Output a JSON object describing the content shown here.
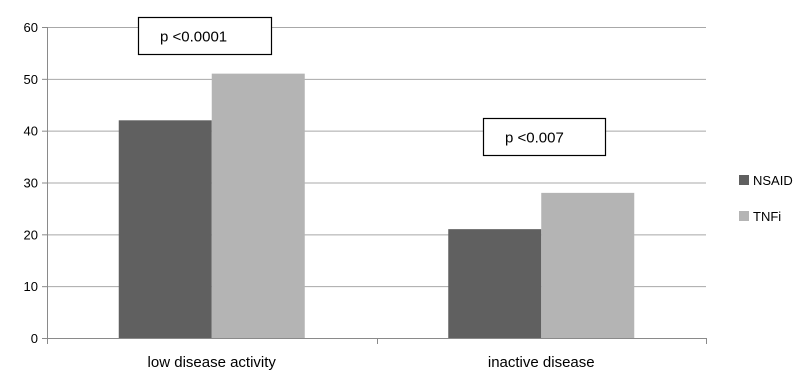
{
  "chart_data": {
    "type": "bar",
    "title": "",
    "xlabel": "",
    "ylabel": "",
    "categories": [
      "low disease activity",
      "inactive disease"
    ],
    "series": [
      {
        "name": "NSAID",
        "values": [
          42,
          21
        ],
        "color": "#606060"
      },
      {
        "name": "TNFi",
        "values": [
          51,
          28
        ],
        "color": "#b4b4b4"
      }
    ],
    "ylim": [
      0,
      60
    ],
    "yticks": [
      "0",
      "10",
      "20",
      "30",
      "40",
      "50",
      "60"
    ],
    "grid": true,
    "legend": "right",
    "annotations": [
      {
        "text": "p <0.0001",
        "category": 0
      },
      {
        "text": "p <0.007",
        "category": 1
      }
    ]
  }
}
